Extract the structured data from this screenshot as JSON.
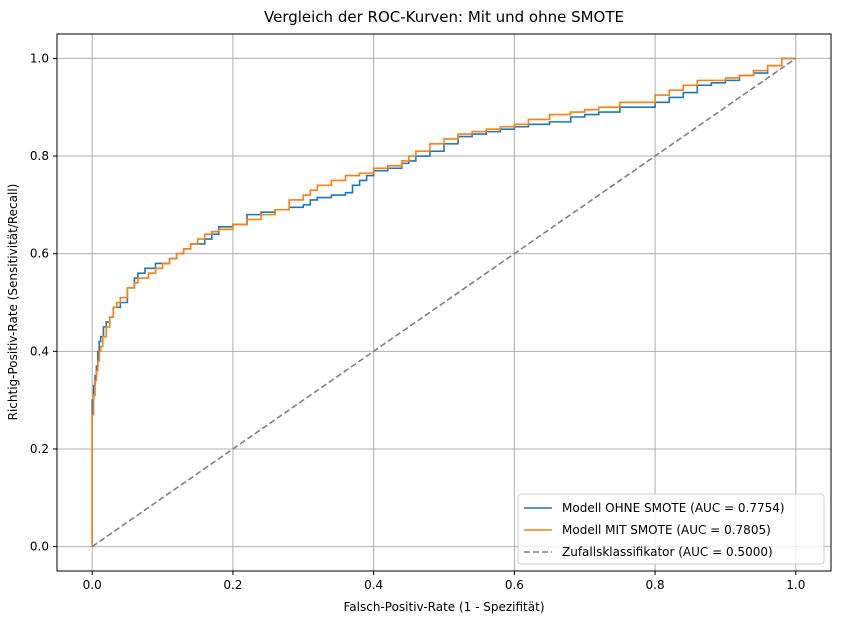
{
  "chart_data": {
    "type": "line",
    "title": "Vergleich der ROC-Kurven: Mit und ohne SMOTE",
    "xlabel": "Falsch-Positiv-Rate (1 - Spezifität)",
    "ylabel": "Richtig-Positiv-Rate (Sensitivität/Recall)",
    "xlim": [
      -0.05,
      1.05
    ],
    "ylim": [
      -0.05,
      1.05
    ],
    "xticks": [
      0.0,
      0.2,
      0.4,
      0.6,
      0.8,
      1.0
    ],
    "yticks": [
      0.0,
      0.2,
      0.4,
      0.6,
      0.8,
      1.0
    ],
    "xtick_labels": [
      "0.0",
      "0.2",
      "0.4",
      "0.6",
      "0.8",
      "1.0"
    ],
    "ytick_labels": [
      "0.0",
      "0.2",
      "0.4",
      "0.6",
      "0.8",
      "1.0"
    ],
    "grid": true,
    "legend_position": "lower-right",
    "series": [
      {
        "name": "Modell OHNE SMOTE (AUC = 0.7754)",
        "color": "#1f77b4",
        "style": "solid",
        "x": [
          0.0,
          0.0,
          0.002,
          0.004,
          0.006,
          0.008,
          0.01,
          0.012,
          0.016,
          0.02,
          0.025,
          0.03,
          0.035,
          0.04,
          0.05,
          0.06,
          0.065,
          0.07,
          0.075,
          0.08,
          0.09,
          0.1,
          0.11,
          0.12,
          0.13,
          0.14,
          0.15,
          0.16,
          0.17,
          0.18,
          0.2,
          0.22,
          0.24,
          0.26,
          0.28,
          0.3,
          0.31,
          0.32,
          0.34,
          0.36,
          0.37,
          0.38,
          0.39,
          0.4,
          0.42,
          0.44,
          0.45,
          0.46,
          0.48,
          0.5,
          0.52,
          0.54,
          0.56,
          0.58,
          0.6,
          0.62,
          0.65,
          0.68,
          0.7,
          0.72,
          0.75,
          0.78,
          0.8,
          0.82,
          0.84,
          0.86,
          0.88,
          0.9,
          0.92,
          0.94,
          0.96,
          0.98,
          1.0
        ],
        "y": [
          0.0,
          0.25,
          0.3,
          0.33,
          0.35,
          0.37,
          0.4,
          0.42,
          0.43,
          0.45,
          0.46,
          0.47,
          0.49,
          0.49,
          0.5,
          0.53,
          0.55,
          0.56,
          0.56,
          0.57,
          0.57,
          0.58,
          0.58,
          0.59,
          0.6,
          0.61,
          0.62,
          0.62,
          0.63,
          0.64,
          0.655,
          0.66,
          0.68,
          0.685,
          0.69,
          0.695,
          0.7,
          0.71,
          0.715,
          0.72,
          0.725,
          0.74,
          0.75,
          0.76,
          0.77,
          0.775,
          0.785,
          0.79,
          0.8,
          0.81,
          0.825,
          0.84,
          0.845,
          0.85,
          0.855,
          0.86,
          0.865,
          0.87,
          0.88,
          0.885,
          0.89,
          0.9,
          0.9,
          0.91,
          0.92,
          0.93,
          0.945,
          0.95,
          0.955,
          0.965,
          0.97,
          0.985,
          1.0
        ]
      },
      {
        "name": "Modell MIT SMOTE (AUC = 0.7805)",
        "color": "#ff7f0e",
        "style": "solid",
        "x": [
          0.0,
          0.0,
          0.002,
          0.004,
          0.006,
          0.008,
          0.01,
          0.012,
          0.015,
          0.02,
          0.025,
          0.03,
          0.035,
          0.04,
          0.05,
          0.06,
          0.065,
          0.07,
          0.08,
          0.09,
          0.1,
          0.11,
          0.12,
          0.13,
          0.14,
          0.15,
          0.16,
          0.17,
          0.18,
          0.2,
          0.22,
          0.24,
          0.26,
          0.28,
          0.3,
          0.31,
          0.32,
          0.34,
          0.36,
          0.37,
          0.38,
          0.4,
          0.42,
          0.44,
          0.45,
          0.46,
          0.48,
          0.5,
          0.52,
          0.54,
          0.56,
          0.58,
          0.6,
          0.62,
          0.65,
          0.68,
          0.7,
          0.72,
          0.75,
          0.78,
          0.8,
          0.82,
          0.84,
          0.86,
          0.88,
          0.9,
          0.92,
          0.94,
          0.96,
          0.98,
          1.0
        ],
        "y": [
          0.0,
          0.23,
          0.27,
          0.31,
          0.34,
          0.36,
          0.38,
          0.4,
          0.41,
          0.43,
          0.45,
          0.47,
          0.49,
          0.5,
          0.51,
          0.53,
          0.54,
          0.55,
          0.55,
          0.56,
          0.57,
          0.58,
          0.59,
          0.6,
          0.61,
          0.62,
          0.63,
          0.64,
          0.645,
          0.65,
          0.66,
          0.67,
          0.68,
          0.69,
          0.71,
          0.72,
          0.73,
          0.74,
          0.75,
          0.76,
          0.76,
          0.765,
          0.775,
          0.78,
          0.79,
          0.8,
          0.81,
          0.825,
          0.835,
          0.845,
          0.85,
          0.855,
          0.86,
          0.865,
          0.875,
          0.885,
          0.89,
          0.895,
          0.9,
          0.91,
          0.91,
          0.925,
          0.935,
          0.945,
          0.955,
          0.955,
          0.96,
          0.965,
          0.975,
          0.985,
          1.0
        ]
      },
      {
        "name": "Zufallsklassifikator (AUC = 0.5000)",
        "color": "#808080",
        "style": "dashed",
        "x": [
          0.0,
          1.0
        ],
        "y": [
          0.0,
          1.0
        ]
      }
    ]
  }
}
